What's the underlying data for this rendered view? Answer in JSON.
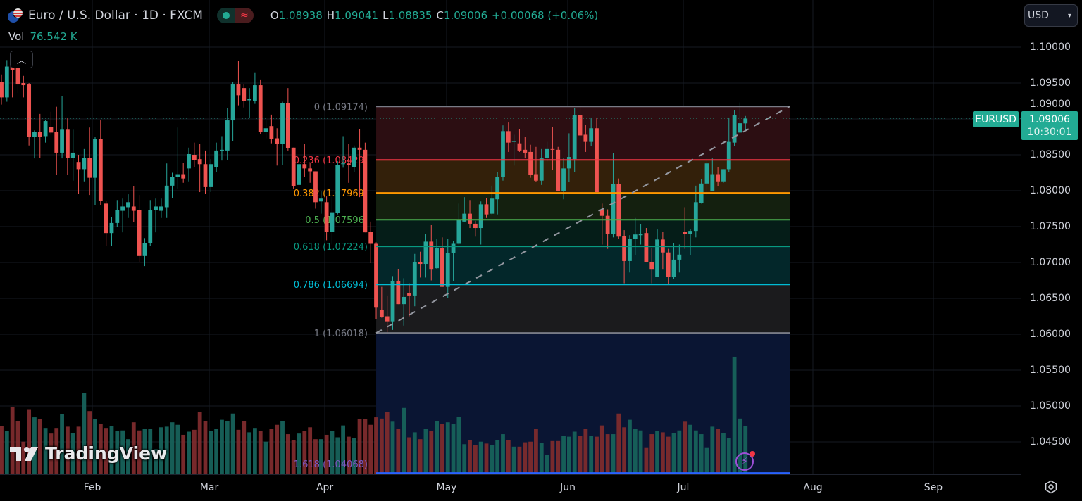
{
  "header": {
    "title": "Euro / U.S. Dollar · 1D · FXCM",
    "market_status_icon": "market-open-dot",
    "replay_icon": "approx-icon",
    "ohlc": {
      "o_label": "O",
      "o": "1.08938",
      "h_label": "H",
      "h": "1.09041",
      "l_label": "L",
      "l": "1.08835",
      "c_label": "C",
      "c": "1.09006",
      "change": "+0.00068 (+0.06%)"
    },
    "volume_label": "Vol",
    "volume_value": "76.542 K",
    "collapse_icon": "chevron-up-icon"
  },
  "price_axis": {
    "currency": "USD",
    "labels": [
      "1.10000",
      "1.09500",
      "1.09000",
      "1.08500",
      "1.08000",
      "1.07500",
      "1.07000",
      "1.06500",
      "1.06000",
      "1.05500",
      "1.05000",
      "1.04500"
    ],
    "symbol_tag": "EURUSD",
    "last_price": "1.09006",
    "countdown": "10:30:01",
    "accent_color": "#22ab94"
  },
  "time_axis": {
    "labels": [
      "Feb",
      "Mar",
      "Apr",
      "May",
      "Jun",
      "Jul",
      "Aug",
      "Sep"
    ],
    "settings_icon": "gear-icon"
  },
  "watermark": "TradingView",
  "chart_data": {
    "type": "candlestick",
    "symbol": "EURUSD",
    "interval": "1D",
    "ylim": [
      1.04,
      1.1
    ],
    "grid": true,
    "up_color": "#26a69a",
    "down_color": "#ef5350",
    "candles_ohlc": [
      [
        1.0951,
        1.0962,
        1.092,
        1.093
      ],
      [
        1.093,
        1.0982,
        1.0924,
        1.0973
      ],
      [
        1.0975,
        1.0995,
        1.093,
        1.0968
      ],
      [
        1.0971,
        1.0975,
        1.0936,
        1.0948
      ],
      [
        1.095,
        1.096,
        1.093,
        1.0947
      ],
      [
        1.0948,
        1.095,
        1.0863,
        1.0875
      ],
      [
        1.0875,
        1.0884,
        1.0845,
        1.0882
      ],
      [
        1.0882,
        1.0907,
        1.0846,
        1.0875
      ],
      [
        1.0876,
        1.0899,
        1.0867,
        1.0897
      ],
      [
        1.0889,
        1.091,
        1.0878,
        1.0881
      ],
      [
        1.0882,
        1.0917,
        1.0822,
        1.0853
      ],
      [
        1.0853,
        1.0932,
        1.0845,
        1.0885
      ],
      [
        1.0885,
        1.0902,
        1.0822,
        1.0846
      ],
      [
        1.0846,
        1.0885,
        1.0814,
        1.0853
      ],
      [
        1.084,
        1.085,
        1.0796,
        1.083
      ],
      [
        1.083,
        1.0858,
        1.0813,
        1.0846
      ],
      [
        1.0846,
        1.0888,
        1.0794,
        1.0818
      ],
      [
        1.0818,
        1.0875,
        1.078,
        1.0872
      ],
      [
        1.0872,
        1.0898,
        1.078,
        1.0786
      ],
      [
        1.0782,
        1.0786,
        1.0723,
        1.0741
      ],
      [
        1.0741,
        1.0763,
        1.0723,
        1.0755
      ],
      [
        1.0755,
        1.0787,
        1.0749,
        1.0773
      ],
      [
        1.0772,
        1.0789,
        1.0742,
        1.0778
      ],
      [
        1.0777,
        1.0795,
        1.0762,
        1.0784
      ],
      [
        1.0778,
        1.0806,
        1.0756,
        1.0772
      ],
      [
        1.0773,
        1.0794,
        1.0701,
        1.0709
      ],
      [
        1.0709,
        1.0734,
        1.0695,
        1.0727
      ],
      [
        1.0727,
        1.0787,
        1.0723,
        1.0773
      ],
      [
        1.0773,
        1.0789,
        1.0742,
        1.0778
      ],
      [
        1.0772,
        1.0789,
        1.0762,
        1.0778
      ],
      [
        1.0777,
        1.0838,
        1.0762,
        1.0807
      ],
      [
        1.0807,
        1.0825,
        1.079,
        1.0819
      ],
      [
        1.0819,
        1.0888,
        1.0803,
        1.0823
      ],
      [
        1.0823,
        1.0839,
        1.0811,
        1.0817
      ],
      [
        1.0831,
        1.086,
        1.0813,
        1.0851
      ],
      [
        1.085,
        1.0867,
        1.0833,
        1.0843
      ],
      [
        1.0844,
        1.0865,
        1.0798,
        1.0837
      ],
      [
        1.0837,
        1.0856,
        1.0796,
        1.0805
      ],
      [
        1.0805,
        1.0844,
        1.0798,
        1.0837
      ],
      [
        1.0833,
        1.0867,
        1.0826,
        1.0856
      ],
      [
        1.0855,
        1.0876,
        1.0842,
        1.0857
      ],
      [
        1.0856,
        1.0915,
        1.0843,
        1.0898
      ],
      [
        1.0898,
        1.0951,
        1.0869,
        1.0948
      ],
      [
        1.0948,
        1.0981,
        1.0919,
        1.0933
      ],
      [
        1.0943,
        1.0948,
        1.0916,
        1.0925
      ],
      [
        1.0926,
        1.0943,
        1.0902,
        1.0928
      ],
      [
        1.0925,
        1.0964,
        1.0921,
        1.0947
      ],
      [
        1.0947,
        1.0955,
        1.0879,
        1.0882
      ],
      [
        1.0882,
        1.0899,
        1.0873,
        1.0887
      ],
      [
        1.089,
        1.0906,
        1.0866,
        1.0872
      ],
      [
        1.0873,
        1.0887,
        1.0835,
        1.0865
      ],
      [
        1.0865,
        1.0924,
        1.0836,
        1.0922
      ],
      [
        1.0922,
        1.0943,
        1.0856,
        1.0859
      ],
      [
        1.086,
        1.086,
        1.0803,
        1.0806
      ],
      [
        1.0808,
        1.0858,
        1.0806,
        1.0837
      ],
      [
        1.0837,
        1.0865,
        1.0819,
        1.0831
      ],
      [
        1.0831,
        1.0839,
        1.0811,
        1.0827
      ],
      [
        1.0827,
        1.0827,
        1.0775,
        1.0784
      ],
      [
        1.0785,
        1.0799,
        1.0768,
        1.0789
      ],
      [
        1.0784,
        1.0792,
        1.0731,
        1.0743
      ],
      [
        1.0743,
        1.0791,
        1.0725,
        1.077
      ],
      [
        1.0769,
        1.0841,
        1.0767,
        1.0836
      ],
      [
        1.0837,
        1.0876,
        1.0832,
        1.0838
      ],
      [
        1.0838,
        1.0865,
        1.0811,
        1.0836
      ],
      [
        1.0833,
        1.0863,
        1.0826,
        1.086
      ],
      [
        1.086,
        1.0886,
        1.0791,
        1.0857
      ],
      [
        1.0857,
        1.0867,
        1.0742,
        1.0742
      ],
      [
        1.0743,
        1.0757,
        1.0699,
        1.0726
      ],
      [
        1.0726,
        1.0728,
        1.0621,
        1.0637
      ],
      [
        1.0634,
        1.0666,
        1.0623,
        1.0624
      ],
      [
        1.0625,
        1.0654,
        1.0602,
        1.0618
      ],
      [
        1.0618,
        1.0681,
        1.0606,
        1.0674
      ],
      [
        1.0674,
        1.0691,
        1.0642,
        1.0642
      ],
      [
        1.0642,
        1.0678,
        1.0612,
        1.0652
      ],
      [
        1.0657,
        1.0671,
        1.0625,
        1.0654
      ],
      [
        1.0654,
        1.0712,
        1.0639,
        1.0701
      ],
      [
        1.0701,
        1.0715,
        1.0679,
        1.0698
      ],
      [
        1.0698,
        1.074,
        1.0679,
        1.0729
      ],
      [
        1.0729,
        1.0752,
        1.0675,
        1.069
      ],
      [
        1.0692,
        1.0733,
        1.0691,
        1.072
      ],
      [
        1.072,
        1.0735,
        1.0666,
        1.0666
      ],
      [
        1.0666,
        1.0733,
        1.065,
        1.0713
      ],
      [
        1.0713,
        1.073,
        1.0674,
        1.0726
      ],
      [
        1.0726,
        1.0782,
        1.0725,
        1.0759
      ],
      [
        1.0757,
        1.0791,
        1.0757,
        1.0768
      ],
      [
        1.0768,
        1.0787,
        1.0748,
        1.0754
      ],
      [
        1.0754,
        1.0758,
        1.0736,
        1.0748
      ],
      [
        1.0748,
        1.0785,
        1.0725,
        1.0781
      ],
      [
        1.0781,
        1.079,
        1.0762,
        1.0767
      ],
      [
        1.0768,
        1.0807,
        1.0767,
        1.0789
      ],
      [
        1.0788,
        1.0826,
        1.0767,
        1.0819
      ],
      [
        1.0819,
        1.0891,
        1.0814,
        1.0883
      ],
      [
        1.0883,
        1.0895,
        1.0854,
        1.0867
      ],
      [
        1.0868,
        1.0878,
        1.0835,
        1.0869
      ],
      [
        1.0866,
        1.0886,
        1.0854,
        1.0856
      ],
      [
        1.0857,
        1.0875,
        1.0845,
        1.0853
      ],
      [
        1.0854,
        1.0864,
        1.0818,
        1.0822
      ],
      [
        1.0823,
        1.0861,
        1.0812,
        1.0814
      ],
      [
        1.0814,
        1.0858,
        1.0808,
        1.0845
      ],
      [
        1.0846,
        1.0868,
        1.0841,
        1.0858
      ],
      [
        1.0858,
        1.0889,
        1.0829,
        1.0857
      ],
      [
        1.0857,
        1.0861,
        1.08,
        1.08
      ],
      [
        1.08,
        1.0845,
        1.0788,
        1.0831
      ],
      [
        1.0831,
        1.088,
        1.0812,
        1.0847
      ],
      [
        1.0844,
        1.0915,
        1.0826,
        1.0905
      ],
      [
        1.0905,
        1.0919,
        1.086,
        1.0877
      ],
      [
        1.0878,
        1.0892,
        1.0854,
        1.0868
      ],
      [
        1.0868,
        1.0902,
        1.0862,
        1.0887
      ],
      [
        1.0887,
        1.0902,
        1.0798,
        1.0798
      ],
      [
        1.0774,
        1.0782,
        1.0725,
        1.0765
      ],
      [
        1.0765,
        1.0774,
        1.0719,
        1.074
      ],
      [
        1.074,
        1.0852,
        1.0735,
        1.0809
      ],
      [
        1.0809,
        1.0817,
        1.0733,
        1.0736
      ],
      [
        1.0737,
        1.0745,
        1.0671,
        1.0702
      ],
      [
        1.0702,
        1.0738,
        1.0686,
        1.0733
      ],
      [
        1.0733,
        1.0762,
        1.071,
        1.0739
      ],
      [
        1.0738,
        1.0753,
        1.0725,
        1.074
      ],
      [
        1.0741,
        1.0748,
        1.0701,
        1.0701
      ],
      [
        1.0701,
        1.072,
        1.0671,
        1.069
      ],
      [
        1.068,
        1.0746,
        1.068,
        1.0732
      ],
      [
        1.0732,
        1.0743,
        1.069,
        1.0714
      ],
      [
        1.0714,
        1.0719,
        1.0669,
        1.068
      ],
      [
        1.068,
        1.0727,
        1.0677,
        1.0704
      ],
      [
        1.0704,
        1.0725,
        1.0686,
        1.0711
      ],
      [
        1.0743,
        1.0777,
        1.0719,
        1.074
      ],
      [
        1.074,
        1.0747,
        1.071,
        1.0744
      ],
      [
        1.0744,
        1.0807,
        1.0735,
        1.0784
      ],
      [
        1.0783,
        1.0816,
        1.0782,
        1.081
      ],
      [
        1.081,
        1.0845,
        1.0794,
        1.0838
      ],
      [
        1.08,
        1.0845,
        1.0799,
        1.0823
      ],
      [
        1.0823,
        1.0833,
        1.0806,
        1.0813
      ],
      [
        1.0813,
        1.083,
        1.0811,
        1.083
      ],
      [
        1.083,
        1.0902,
        1.0826,
        1.0868
      ],
      [
        1.0867,
        1.0912,
        1.0862,
        1.0905
      ],
      [
        1.0881,
        1.0923,
        1.088,
        1.0894
      ],
      [
        1.08938,
        1.09041,
        1.08835,
        1.09006
      ]
    ],
    "volumes_k": [
      76,
      68,
      107,
      84,
      51,
      103,
      90,
      87,
      73,
      64,
      73,
      95,
      75,
      65,
      75,
      129,
      100,
      87,
      79,
      73,
      76,
      68,
      69,
      55,
      82,
      69,
      71,
      72,
      39,
      74,
      75,
      82,
      78,
      62,
      67,
      70,
      98,
      84,
      68,
      71,
      86,
      84,
      96,
      70,
      84,
      66,
      73,
      68,
      51,
      72,
      78,
      84,
      63,
      53,
      64,
      68,
      74,
      55,
      55,
      62,
      68,
      58,
      77,
      59,
      57,
      87,
      87,
      78,
      90,
      88,
      98,
      83,
      71,
      105,
      58,
      66,
      55,
      72,
      68,
      84,
      79,
      82,
      79,
      91,
      47,
      54,
      46,
      51,
      48,
      46,
      53,
      63,
      53,
      43,
      43,
      50,
      51,
      71,
      49,
      30,
      52,
      52,
      60,
      59,
      67,
      60,
      71,
      60,
      59,
      77,
      63,
      63,
      96,
      74,
      86,
      71,
      69,
      42,
      63,
      68,
      66,
      59,
      65,
      69,
      83,
      78,
      69,
      63,
      42,
      75,
      71,
      65,
      57,
      187,
      88,
      76.542
    ],
    "fibonacci": {
      "levels": [
        {
          "label": "0 (1.09174)",
          "price": 1.09174,
          "color": "#787b86",
          "fill": "#2c0e12"
        },
        {
          "label": "0.236 (1.08429)",
          "price": 1.08429,
          "color": "#f23645",
          "fill": "#33200a"
        },
        {
          "label": "0.382 (1.07969)",
          "price": 1.07969,
          "color": "#ff9800",
          "fill": "#14200f"
        },
        {
          "label": "0.5 (1.07596)",
          "price": 1.07596,
          "color": "#4caf50",
          "fill": "#051d18"
        },
        {
          "label": "0.618 (1.07224)",
          "price": 1.07224,
          "color": "#089981",
          "fill": "#03272a"
        },
        {
          "label": "0.786 (1.06694)",
          "price": 1.06694,
          "color": "#00bcd4",
          "fill": "#1b1b1d"
        },
        {
          "label": "1 (1.06018)",
          "price": 1.06018,
          "color": "#787b86",
          "fill": "#0a1533"
        },
        {
          "label": "1.618 (1.04068)",
          "price": 1.04068,
          "color": "#2962ff",
          "label_color": "#7e57c2"
        }
      ],
      "trend_line_color": "#9598a1"
    }
  }
}
